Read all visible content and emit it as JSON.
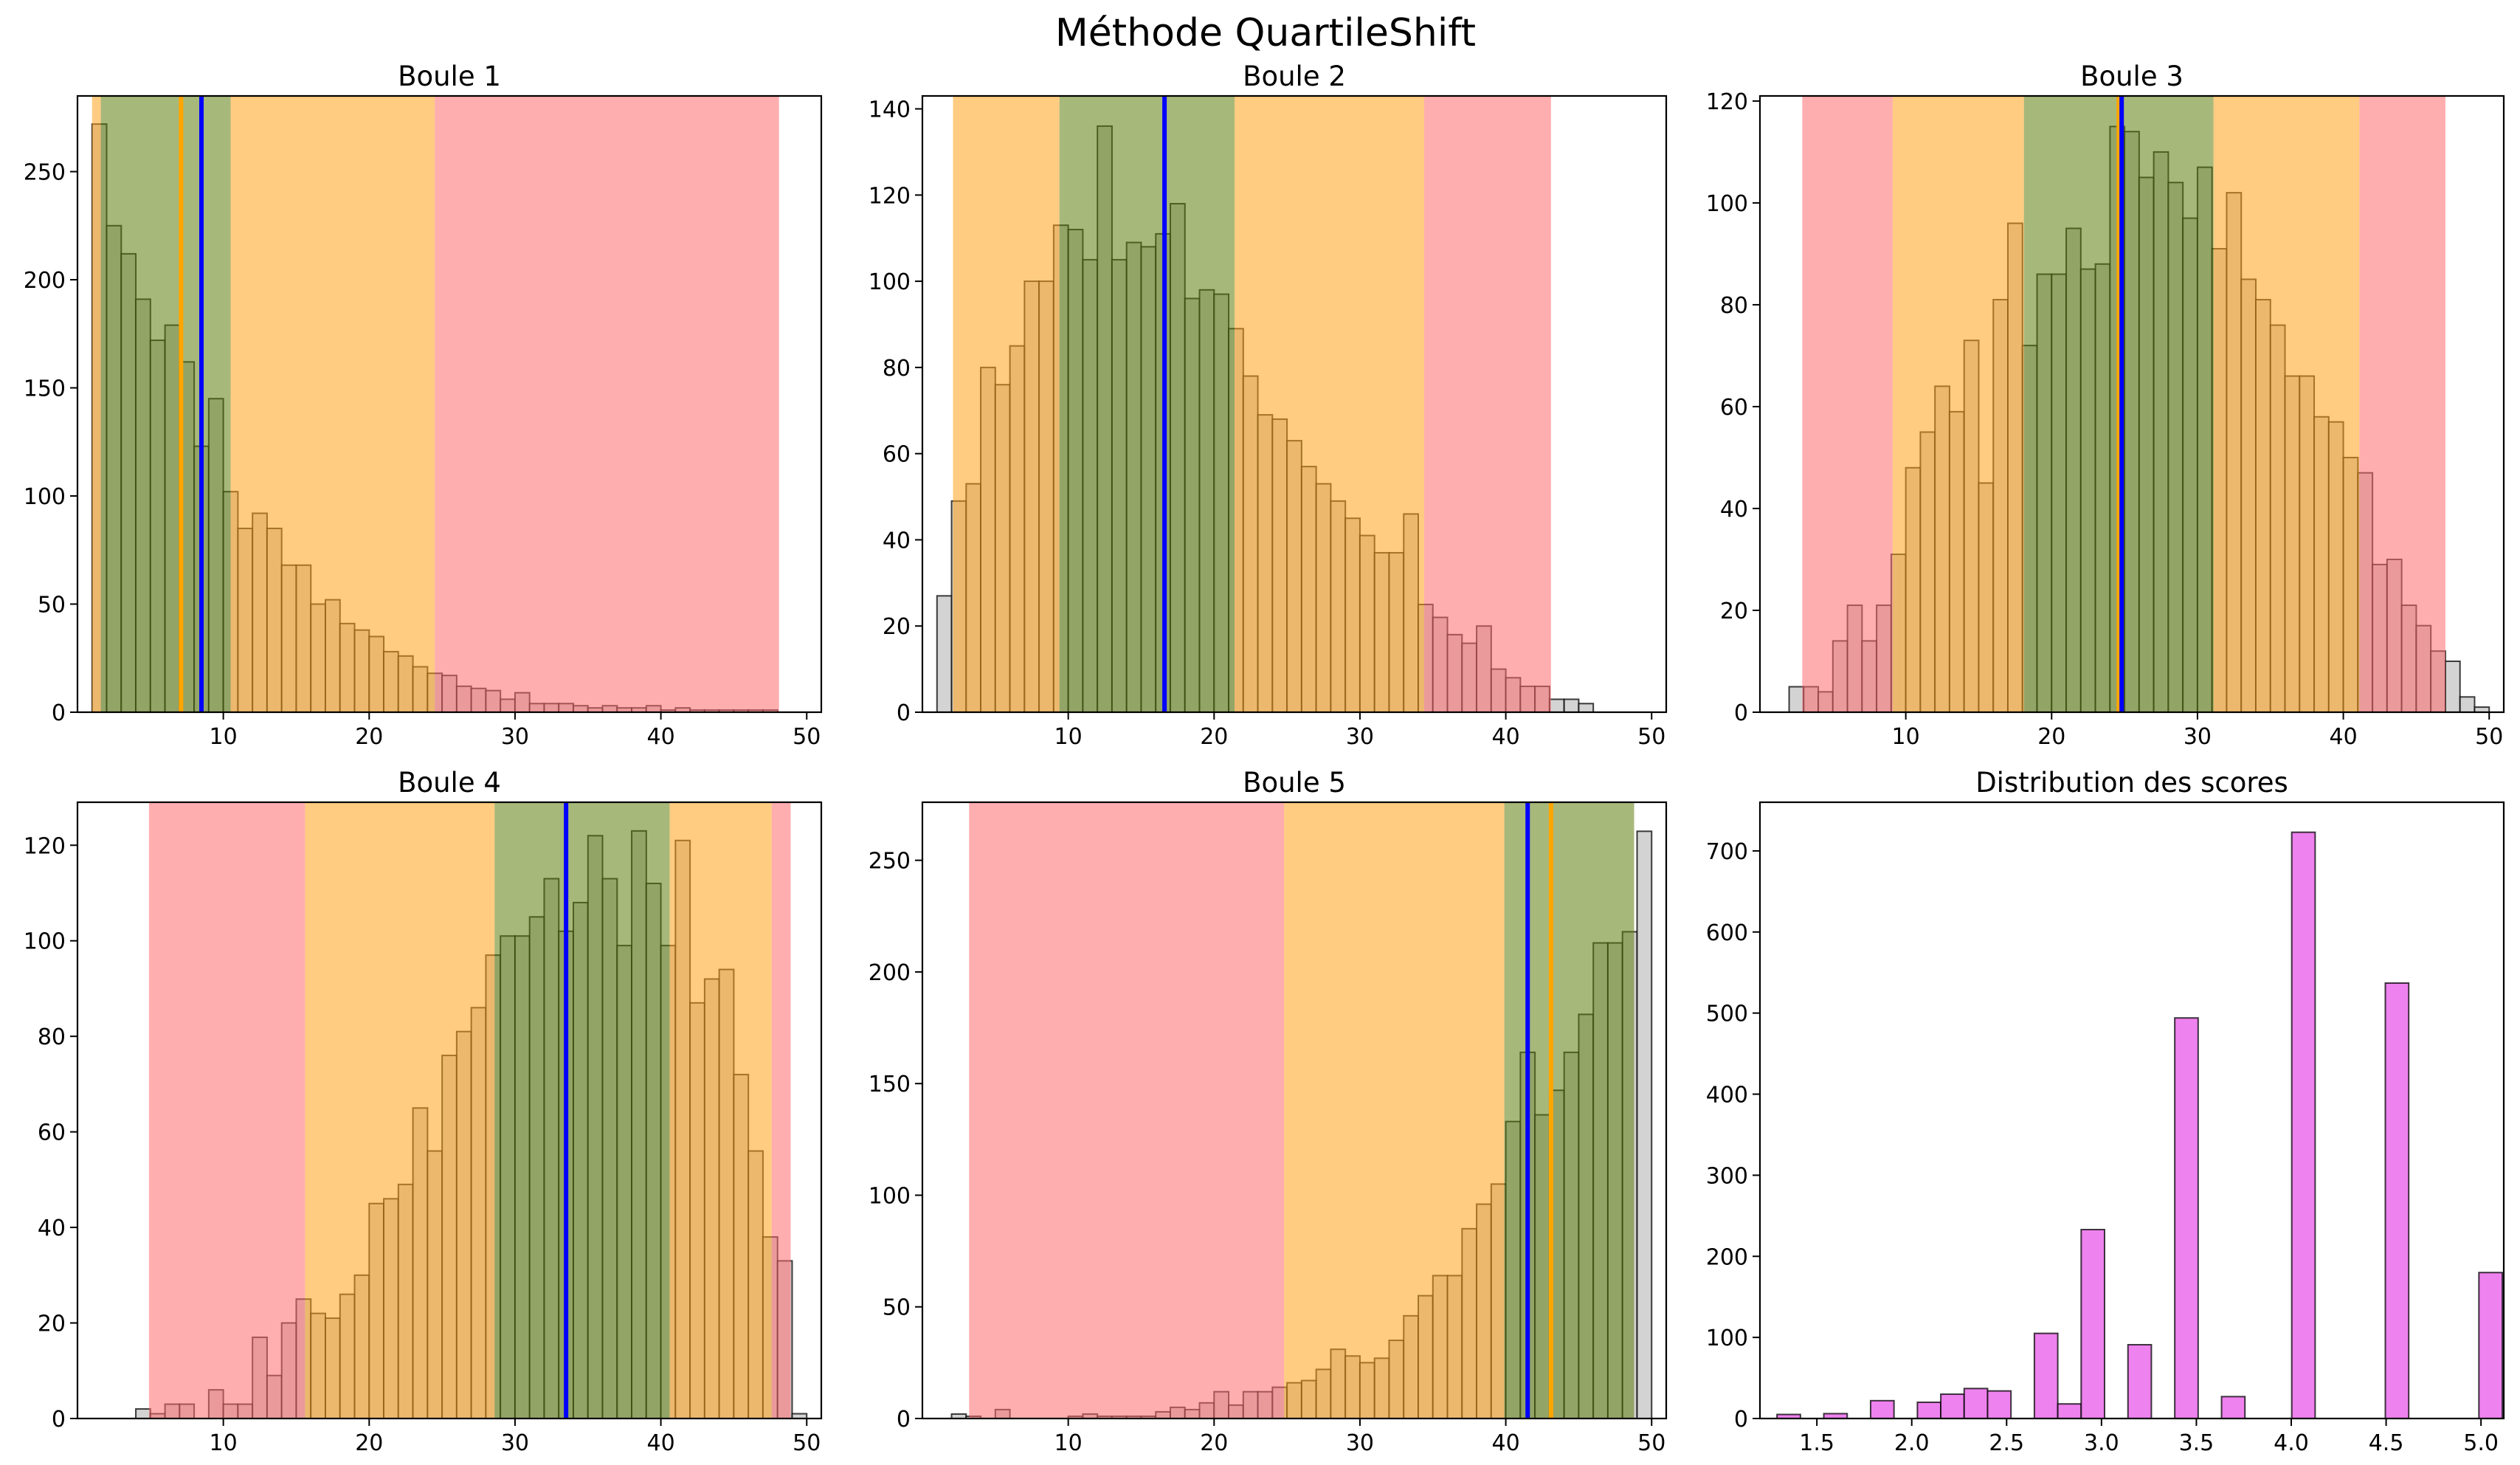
{
  "figure": {
    "suptitle": "Méthode QuartileShift"
  },
  "colors": {
    "bar_gray": "#d3d3d3",
    "bar_score": "#ee82ee",
    "bar_edge": "#000000",
    "band_red": "#ff6b70",
    "band_orange": "#ffa31a",
    "band_green": "#5f7d0f",
    "line_blue": "#0000ff",
    "line_orange": "#ffa500"
  },
  "chart_data": [
    {
      "type": "histogram",
      "title": "Boule 1",
      "xlim": [
        0,
        51
      ],
      "ylim": [
        0,
        285
      ],
      "xticks": [
        10,
        20,
        30,
        40,
        50
      ],
      "yticks": [
        0,
        50,
        100,
        150,
        200,
        250
      ],
      "bin_start": 1,
      "bin_width": 1,
      "counts": [
        272,
        225,
        212,
        191,
        172,
        179,
        162,
        123,
        145,
        102,
        85,
        92,
        85,
        68,
        68,
        50,
        52,
        41,
        38,
        35,
        28,
        26,
        21,
        18,
        17,
        12,
        11,
        10,
        6,
        9,
        4,
        4,
        4,
        3,
        2,
        3,
        2,
        2,
        3,
        1,
        2,
        1,
        1,
        1,
        1,
        1,
        1
      ],
      "bands": [
        {
          "from": 1,
          "to": 1.6,
          "level": "orange"
        },
        {
          "from": 1.6,
          "to": 10.5,
          "level": "green"
        },
        {
          "from": 10.5,
          "to": 24.5,
          "level": "orange"
        },
        {
          "from": 24.5,
          "to": 48.1,
          "level": "red"
        }
      ],
      "vlines": [
        {
          "x": 7.1,
          "color": "orange"
        },
        {
          "x": 8.5,
          "color": "blue"
        }
      ]
    },
    {
      "type": "histogram",
      "title": "Boule 2",
      "xlim": [
        0,
        51
      ],
      "ylim": [
        0,
        143
      ],
      "xticks": [
        10,
        20,
        30,
        40,
        50
      ],
      "yticks": [
        0,
        20,
        40,
        60,
        80,
        100,
        120,
        140
      ],
      "bin_start": 1,
      "bin_width": 1,
      "counts": [
        27,
        49,
        53,
        80,
        76,
        85,
        100,
        100,
        113,
        112,
        105,
        136,
        105,
        109,
        108,
        111,
        118,
        96,
        98,
        97,
        89,
        78,
        69,
        68,
        63,
        57,
        53,
        49,
        45,
        41,
        37,
        37,
        46,
        25,
        22,
        18,
        16,
        20,
        10,
        8,
        6,
        6,
        3,
        3,
        2
      ],
      "bands": [
        {
          "from": 2.1,
          "to": 9.4,
          "level": "orange"
        },
        {
          "from": 9.4,
          "to": 21.4,
          "level": "green"
        },
        {
          "from": 21.4,
          "to": 34.4,
          "level": "orange"
        },
        {
          "from": 34.4,
          "to": 43.1,
          "level": "red"
        }
      ],
      "vlines": [
        {
          "x": 16.6,
          "color": "blue"
        }
      ]
    },
    {
      "type": "histogram",
      "title": "Boule 3",
      "xlim": [
        0,
        51
      ],
      "ylim": [
        0,
        121
      ],
      "xticks": [
        10,
        20,
        30,
        40,
        50
      ],
      "yticks": [
        0,
        20,
        40,
        60,
        80,
        100,
        120
      ],
      "bin_start": 2,
      "bin_width": 1,
      "counts": [
        5,
        5,
        4,
        14,
        21,
        14,
        21,
        31,
        48,
        55,
        64,
        59,
        73,
        45,
        81,
        96,
        72,
        86,
        86,
        95,
        87,
        88,
        115,
        114,
        105,
        110,
        104,
        97,
        107,
        91,
        102,
        85,
        81,
        76,
        66,
        66,
        58,
        57,
        50,
        47,
        29,
        30,
        21,
        17,
        12,
        10,
        3,
        1
      ],
      "bands": [
        {
          "from": 2.9,
          "to": 9.1,
          "level": "red"
        },
        {
          "from": 9.1,
          "to": 18.1,
          "level": "orange"
        },
        {
          "from": 18.1,
          "to": 31.1,
          "level": "green"
        },
        {
          "from": 31.1,
          "to": 41.1,
          "level": "orange"
        },
        {
          "from": 41.1,
          "to": 47.0,
          "level": "red"
        }
      ],
      "vlines": [
        {
          "x": 24.6,
          "color": "orange"
        },
        {
          "x": 24.8,
          "color": "blue"
        }
      ]
    },
    {
      "type": "histogram",
      "title": "Boule 4",
      "xlim": [
        0,
        51
      ],
      "ylim": [
        0,
        129
      ],
      "xticks": [
        10,
        20,
        30,
        40,
        50
      ],
      "yticks": [
        0,
        20,
        40,
        60,
        80,
        100,
        120
      ],
      "bin_start": 4,
      "bin_width": 1,
      "counts": [
        2,
        1,
        3,
        3,
        0,
        6,
        3,
        3,
        17,
        9,
        20,
        25,
        22,
        21,
        26,
        30,
        45,
        46,
        49,
        65,
        56,
        76,
        81,
        86,
        97,
        101,
        101,
        105,
        113,
        102,
        108,
        122,
        113,
        99,
        123,
        112,
        99,
        121,
        87,
        92,
        94,
        72,
        56,
        38,
        33,
        1
      ],
      "bands": [
        {
          "from": 4.9,
          "to": 15.6,
          "level": "red"
        },
        {
          "from": 15.6,
          "to": 28.6,
          "level": "orange"
        },
        {
          "from": 28.6,
          "to": 40.6,
          "level": "green"
        },
        {
          "from": 40.6,
          "to": 47.6,
          "level": "orange"
        },
        {
          "from": 47.6,
          "to": 48.9,
          "level": "red"
        }
      ],
      "vlines": [
        {
          "x": 33.5,
          "color": "blue"
        }
      ]
    },
    {
      "type": "histogram",
      "title": "Boule 5",
      "xlim": [
        0,
        51
      ],
      "ylim": [
        0,
        276
      ],
      "xticks": [
        10,
        20,
        30,
        40,
        50
      ],
      "yticks": [
        0,
        50,
        100,
        150,
        200,
        250
      ],
      "bin_start": 2,
      "bin_width": 1,
      "counts": [
        2,
        1,
        0,
        4,
        0,
        0,
        0,
        0,
        1,
        2,
        1,
        1,
        1,
        1,
        3,
        5,
        4,
        7,
        12,
        6,
        12,
        12,
        14,
        16,
        17,
        22,
        31,
        28,
        25,
        27,
        35,
        46,
        55,
        64,
        64,
        85,
        96,
        105,
        133,
        164,
        136,
        147,
        164,
        181,
        213,
        213,
        218,
        263
      ],
      "bands": [
        {
          "from": 3.2,
          "to": 24.8,
          "level": "red"
        },
        {
          "from": 24.8,
          "to": 39.9,
          "level": "orange"
        },
        {
          "from": 39.9,
          "to": 48.8,
          "level": "green"
        }
      ],
      "vlines": [
        {
          "x": 41.5,
          "color": "blue"
        },
        {
          "x": 43.1,
          "color": "orange"
        }
      ]
    },
    {
      "type": "histogram",
      "title": "Distribution des scores",
      "xlim": [
        1.2,
        5.12
      ],
      "ylim": [
        0,
        760
      ],
      "xticks": [
        1.5,
        2.0,
        2.5,
        3.0,
        3.5,
        4.0,
        4.5,
        5.0
      ],
      "xtick_labels": [
        "1.5",
        "2.0",
        "2.5",
        "3.0",
        "3.5",
        "4.0",
        "4.5",
        "5.0"
      ],
      "yticks": [
        0,
        100,
        200,
        300,
        400,
        500,
        600,
        700
      ],
      "bin_start": 1.29,
      "bin_width": 0.1233,
      "counts": [
        5,
        0,
        6,
        0,
        22,
        0,
        20,
        30,
        37,
        34,
        0,
        105,
        18,
        233,
        0,
        91,
        0,
        494,
        0,
        27,
        0,
        0,
        723,
        0,
        0,
        0,
        537,
        0,
        0,
        0,
        180
      ],
      "bands": [],
      "vlines": []
    }
  ]
}
